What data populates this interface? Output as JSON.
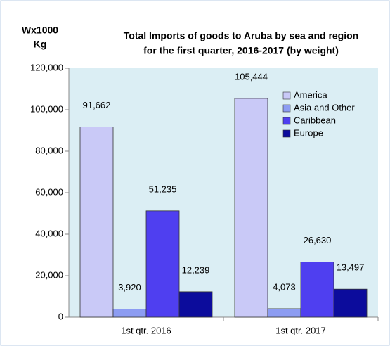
{
  "chart_data": {
    "type": "bar",
    "title": [
      "Total Imports of goods to Aruba by sea and region",
      "for the first quarter, 2016-2017 (by weight)"
    ],
    "y_label": [
      "Wx1000",
      "Kg"
    ],
    "categories": [
      "1st qtr. 2016",
      "1st qtr. 2017"
    ],
    "series": [
      {
        "name": "America",
        "color": "#c9c9f7",
        "values": [
          91662,
          105444
        ],
        "value_labels": [
          "91,662",
          "105,444"
        ]
      },
      {
        "name": "Asia and Other",
        "color": "#8c9cf2",
        "values": [
          3920,
          4073
        ],
        "value_labels": [
          "3,920",
          "4,073"
        ]
      },
      {
        "name": "Caribbean",
        "color": "#4f3ff0",
        "values": [
          51235,
          26630
        ],
        "value_labels": [
          "51,235",
          "26,630"
        ]
      },
      {
        "name": "Europe",
        "color": "#0c0c9c",
        "values": [
          12239,
          13497
        ],
        "value_labels": [
          "12,239",
          "13,497"
        ]
      }
    ],
    "ylim": [
      0,
      120000
    ],
    "yticks": [
      0,
      {
        "value": 20000,
        "label": "20,000"
      },
      {
        "value": 40000,
        "label": "40,000"
      },
      {
        "value": 60000,
        "label": "60,000"
      },
      {
        "value": 80000,
        "label": "80,000"
      },
      {
        "value": 100000,
        "label": "100,000"
      },
      {
        "value": 120000,
        "label": "120,000"
      }
    ],
    "legend": "top-right",
    "background": "#dbeef4"
  }
}
